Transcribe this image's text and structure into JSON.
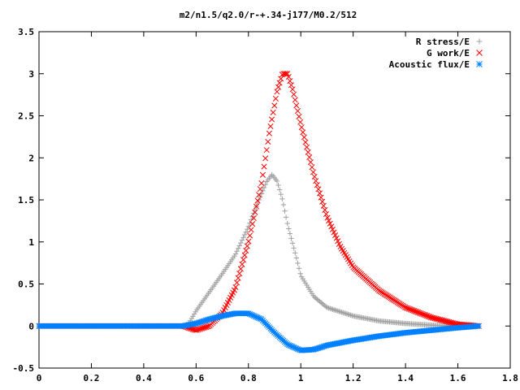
{
  "chart_data": {
    "type": "scatter",
    "title": "m2/n1.5/q2.0/r-+.34-j177/M0.2/512",
    "xlabel": "",
    "ylabel": "",
    "xlim": [
      0,
      1.8
    ],
    "ylim": [
      -0.5,
      3.5
    ],
    "x_ticks": [
      "0",
      "0.2",
      "0.4",
      "0.6",
      "0.8",
      "1",
      "1.2",
      "1.4",
      "1.6",
      "1.8"
    ],
    "y_ticks": [
      "-0.5",
      "0",
      "0.5",
      "1",
      "1.5",
      "2",
      "2.5",
      "3",
      "3.5"
    ],
    "grid": false,
    "legend_position": "top-right",
    "series": [
      {
        "name": "R stress/E",
        "marker": "plus",
        "color": "#a0a0a0",
        "points": [
          [
            0.0,
            0
          ],
          [
            0.2,
            0
          ],
          [
            0.4,
            0
          ],
          [
            0.5,
            0
          ],
          [
            0.55,
            0
          ],
          [
            0.57,
            0.02
          ],
          [
            0.6,
            0.18
          ],
          [
            0.65,
            0.4
          ],
          [
            0.7,
            0.62
          ],
          [
            0.75,
            0.85
          ],
          [
            0.8,
            1.18
          ],
          [
            0.84,
            1.5
          ],
          [
            0.87,
            1.72
          ],
          [
            0.89,
            1.8
          ],
          [
            0.91,
            1.72
          ],
          [
            0.93,
            1.5
          ],
          [
            0.95,
            1.2
          ],
          [
            0.98,
            0.85
          ],
          [
            1.0,
            0.6
          ],
          [
            1.05,
            0.35
          ],
          [
            1.1,
            0.22
          ],
          [
            1.2,
            0.12
          ],
          [
            1.3,
            0.06
          ],
          [
            1.4,
            0.03
          ],
          [
            1.5,
            0.01
          ],
          [
            1.6,
            0.0
          ],
          [
            1.68,
            0.0
          ]
        ]
      },
      {
        "name": "G work/E",
        "marker": "cross",
        "color": "#ff0000",
        "points": [
          [
            0.0,
            0
          ],
          [
            0.2,
            0
          ],
          [
            0.4,
            0
          ],
          [
            0.55,
            0
          ],
          [
            0.6,
            -0.05
          ],
          [
            0.65,
            0.0
          ],
          [
            0.7,
            0.15
          ],
          [
            0.75,
            0.45
          ],
          [
            0.8,
            1.0
          ],
          [
            0.85,
            1.7
          ],
          [
            0.88,
            2.3
          ],
          [
            0.91,
            2.8
          ],
          [
            0.93,
            3.0
          ],
          [
            0.95,
            3.0
          ],
          [
            0.97,
            2.8
          ],
          [
            1.0,
            2.4
          ],
          [
            1.05,
            1.8
          ],
          [
            1.1,
            1.3
          ],
          [
            1.15,
            0.95
          ],
          [
            1.2,
            0.7
          ],
          [
            1.3,
            0.42
          ],
          [
            1.4,
            0.22
          ],
          [
            1.5,
            0.1
          ],
          [
            1.6,
            0.02
          ],
          [
            1.68,
            0.0
          ]
        ]
      },
      {
        "name": "Acoustic flux/E",
        "marker": "star",
        "color": "#0080ff",
        "points": [
          [
            0.0,
            0
          ],
          [
            0.2,
            0
          ],
          [
            0.4,
            0
          ],
          [
            0.55,
            0
          ],
          [
            0.6,
            0.03
          ],
          [
            0.65,
            0.08
          ],
          [
            0.7,
            0.12
          ],
          [
            0.75,
            0.15
          ],
          [
            0.8,
            0.15
          ],
          [
            0.85,
            0.08
          ],
          [
            0.9,
            -0.08
          ],
          [
            0.95,
            -0.22
          ],
          [
            1.0,
            -0.29
          ],
          [
            1.05,
            -0.28
          ],
          [
            1.1,
            -0.23
          ],
          [
            1.2,
            -0.17
          ],
          [
            1.3,
            -0.12
          ],
          [
            1.4,
            -0.08
          ],
          [
            1.5,
            -0.05
          ],
          [
            1.6,
            -0.02
          ],
          [
            1.68,
            0.0
          ]
        ]
      }
    ]
  }
}
